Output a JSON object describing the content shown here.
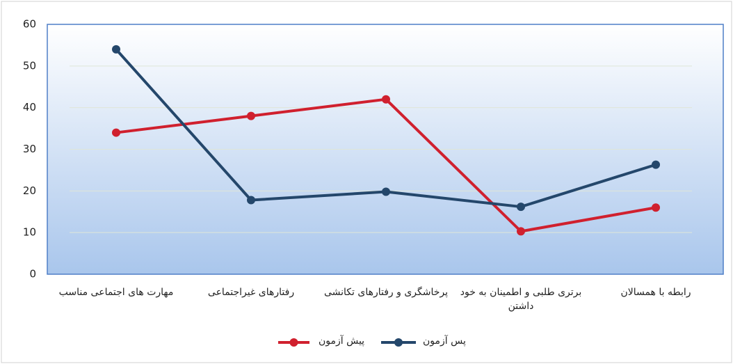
{
  "chart_data": {
    "type": "line",
    "categories": [
      "مهارت های اجتماعی مناسب",
      "رفتارهای غیراجتماعی",
      "پرخاشگری و رفتارهای تکانشی",
      "برتری طلبی و اطمینان به خود داشتن",
      "رابطه با همسالان"
    ],
    "series": [
      {
        "name": "پیش آزمون",
        "color": "#d0202e",
        "values": [
          34,
          38,
          42,
          10.3,
          16
        ]
      },
      {
        "name": "پس آزمون",
        "color": "#24476b",
        "values": [
          54,
          17.8,
          19.8,
          16.2,
          26.3
        ]
      }
    ],
    "ylim": [
      0,
      60
    ],
    "yticks": [
      0,
      10,
      20,
      30,
      40,
      50,
      60
    ],
    "grid": true
  }
}
